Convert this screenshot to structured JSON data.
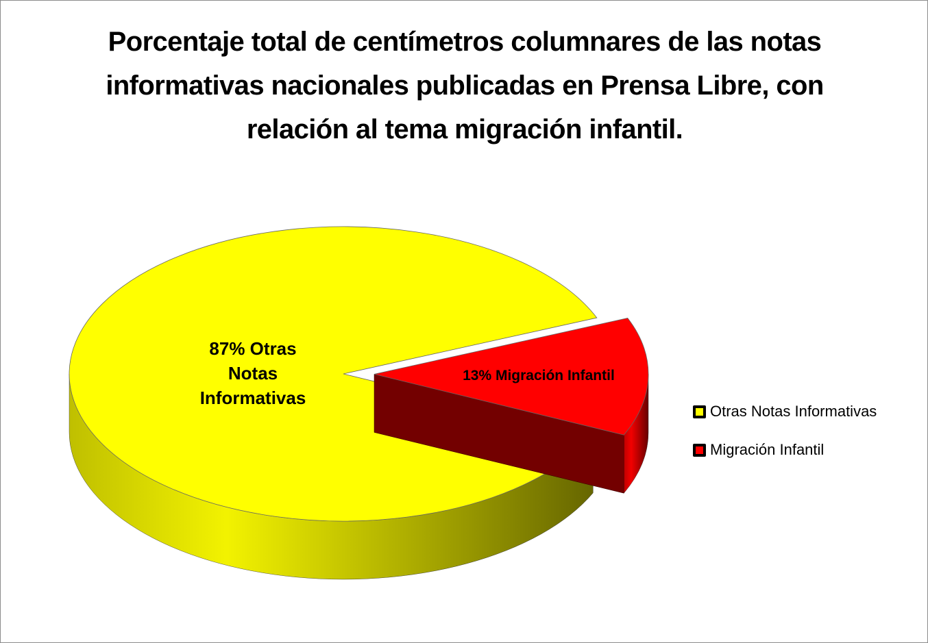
{
  "chart_data": {
    "type": "pie3d",
    "title": "Porcentaje total de centímetros columnares de las notas informativas nacionales publicadas en Prensa Libre, con relación al tema migración infantil.",
    "categories": [
      "Otras Notas Informativas",
      "Migración Infantil"
    ],
    "values": [
      87,
      13
    ],
    "value_labels": [
      "87% Otras Notas Informativas",
      "13% Migración Infantil"
    ],
    "colors": [
      "#ffff00",
      "#ff0000"
    ],
    "legend": "right"
  }
}
